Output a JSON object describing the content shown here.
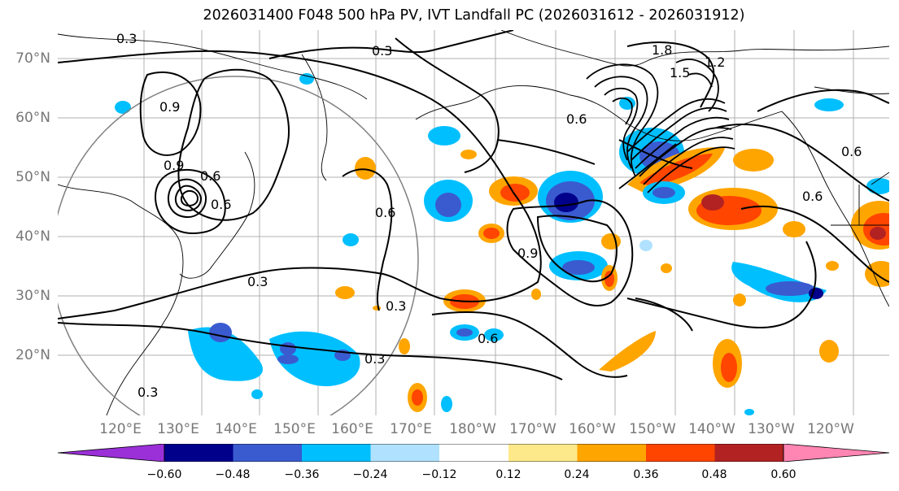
{
  "title": "2026031400 F048 500 hPa PV, IVT Landfall PC (2026031612 - 2026031912)",
  "map": {
    "lat_labels": [
      "70°N",
      "60°N",
      "50°N",
      "40°N",
      "30°N",
      "20°N"
    ],
    "lon_labels": [
      "120°E",
      "130°E",
      "140°E",
      "150°E",
      "160°E",
      "170°E",
      "180°W",
      "170°W",
      "160°W",
      "150°W",
      "140°W",
      "130°W",
      "120°W"
    ],
    "contour_labels": [
      "0.3",
      "0.3",
      "0.3",
      "0.3",
      "0.3",
      "0.3",
      "0.6",
      "0.6",
      "0.6",
      "0.6",
      "0.6",
      "0.6",
      "0.6",
      "0.9",
      "0.9",
      "0.9",
      "1.2",
      "1.5",
      "1.8"
    ],
    "grid": true,
    "contour_color": "#000000",
    "circle_color": "#808080"
  },
  "colorbar": {
    "ticks": [
      "−0.60",
      "−0.48",
      "−0.36",
      "−0.24",
      "−0.12",
      "0.12",
      "0.24",
      "0.36",
      "0.48",
      "0.60"
    ],
    "colors": [
      "#9b30d9",
      "#00008b",
      "#3a5bd0",
      "#00bfff",
      "#b0e2ff",
      "#ffffff",
      "#fee98a",
      "#ffa500",
      "#ff4500",
      "#b22222",
      "#ff85b3"
    ]
  }
}
